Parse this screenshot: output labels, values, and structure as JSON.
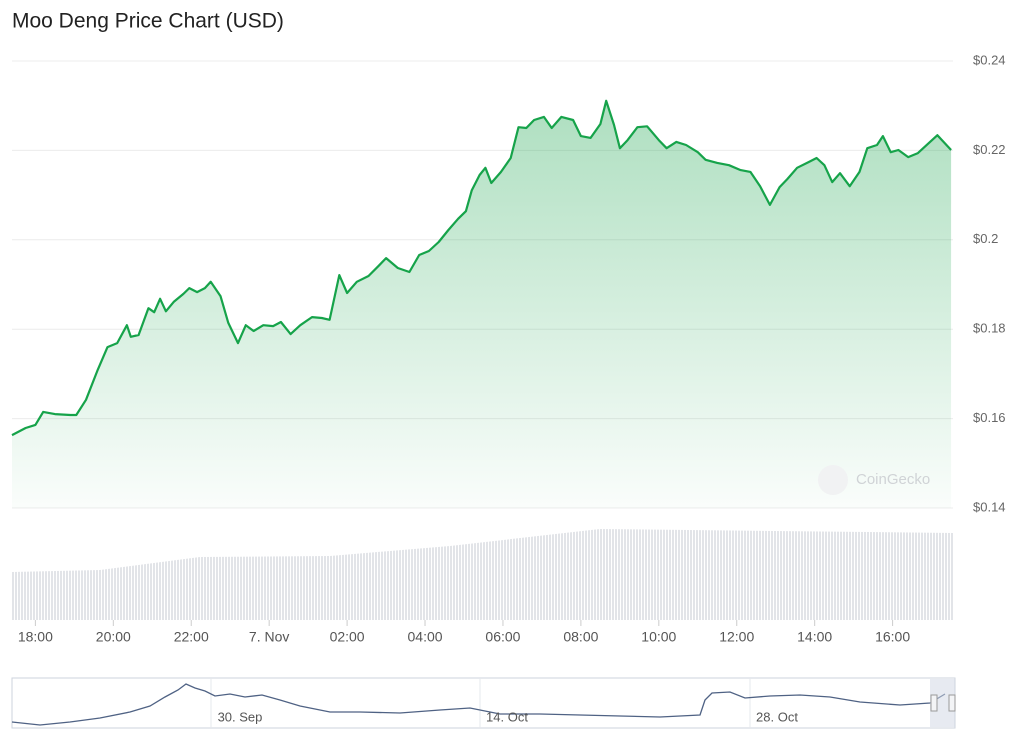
{
  "chart_data": {
    "type": "area",
    "title": "Moo Deng Price Chart (USD)",
    "watermark": "CoinGecko",
    "color": "#16a34a",
    "x": [
      17.4,
      17.75,
      18.0,
      18.2,
      18.5,
      18.9,
      19.05,
      19.3,
      19.6,
      19.85,
      20.1,
      20.35,
      20.45,
      20.65,
      20.9,
      21.05,
      21.2,
      21.35,
      21.55,
      21.8,
      21.95,
      22.15,
      22.35,
      22.5,
      22.75,
      22.95,
      23.2,
      23.4,
      23.6,
      23.85,
      24.1,
      24.3,
      24.55,
      24.8,
      25.1,
      25.35,
      25.55,
      25.8,
      26.0,
      26.25,
      26.55,
      26.8,
      27.0,
      27.3,
      27.6,
      27.85,
      28.1,
      28.35,
      28.6,
      28.85,
      29.05,
      29.2,
      29.4,
      29.55,
      29.7,
      29.95,
      30.2,
      30.4,
      30.6,
      30.8,
      31.05,
      31.25,
      31.5,
      31.8,
      32.0,
      32.25,
      32.5,
      32.65,
      32.85,
      33.0,
      33.2,
      33.45,
      33.7,
      34.0,
      34.2,
      34.45,
      34.7,
      35.0,
      35.2,
      35.5,
      35.8,
      36.1,
      36.35,
      36.6,
      36.85,
      37.1,
      37.3,
      37.55,
      37.85,
      38.05,
      38.25,
      38.45,
      38.65,
      38.9,
      39.15,
      39.35,
      39.6,
      39.75,
      39.95,
      40.15,
      40.4,
      40.65,
      40.9,
      41.15,
      41.5
    ],
    "values": [
      0.1563,
      0.1579,
      0.1586,
      0.1615,
      0.161,
      0.1608,
      0.1608,
      0.1642,
      0.1709,
      0.176,
      0.1769,
      0.1809,
      0.1783,
      0.1787,
      0.1847,
      0.1838,
      0.1868,
      0.184,
      0.1861,
      0.1879,
      0.1892,
      0.1883,
      0.1892,
      0.1906,
      0.1874,
      0.1814,
      0.1769,
      0.1809,
      0.1796,
      0.1809,
      0.1807,
      0.1816,
      0.1789,
      0.1809,
      0.1827,
      0.1825,
      0.1821,
      0.1921,
      0.1881,
      0.1906,
      0.1919,
      0.1941,
      0.1959,
      0.1937,
      0.1928,
      0.1966,
      0.1975,
      0.1995,
      0.2022,
      0.2047,
      0.2064,
      0.2111,
      0.2145,
      0.2161,
      0.2127,
      0.2152,
      0.2183,
      0.2252,
      0.225,
      0.2268,
      0.2275,
      0.225,
      0.2275,
      0.2268,
      0.2232,
      0.2228,
      0.2259,
      0.2311,
      0.2257,
      0.2205,
      0.2223,
      0.2252,
      0.2254,
      0.2223,
      0.2205,
      0.2219,
      0.2212,
      0.2196,
      0.2179,
      0.2172,
      0.2167,
      0.2156,
      0.2152,
      0.212,
      0.2078,
      0.2118,
      0.2136,
      0.2161,
      0.2174,
      0.2183,
      0.2167,
      0.2129,
      0.2149,
      0.212,
      0.2152,
      0.2205,
      0.2212,
      0.2232,
      0.2196,
      0.2201,
      0.2185,
      0.2194,
      0.2214,
      0.2234,
      0.2201
    ],
    "xlim": [
      17.4,
      41.55
    ],
    "xticks": [
      {
        "value": 18,
        "label": "18:00"
      },
      {
        "value": 20,
        "label": "20:00"
      },
      {
        "value": 22,
        "label": "22:00"
      },
      {
        "value": 24,
        "label": "7. Nov"
      },
      {
        "value": 26,
        "label": "02:00"
      },
      {
        "value": 28,
        "label": "04:00"
      },
      {
        "value": 30,
        "label": "06:00"
      },
      {
        "value": 32,
        "label": "08:00"
      },
      {
        "value": 34,
        "label": "10:00"
      },
      {
        "value": 36,
        "label": "12:00"
      },
      {
        "value": 38,
        "label": "14:00"
      },
      {
        "value": 40,
        "label": "16:00"
      }
    ],
    "ylim": [
      0.14,
      0.24
    ],
    "yticks": [
      {
        "value": 0.14,
        "label": "$0.14"
      },
      {
        "value": 0.16,
        "label": "$0.16"
      },
      {
        "value": 0.18,
        "label": "$0.18"
      },
      {
        "value": 0.2,
        "label": "$0.2"
      },
      {
        "value": 0.22,
        "label": "$0.22"
      },
      {
        "value": 0.24,
        "label": "$0.24"
      }
    ],
    "grid": true
  },
  "navigator": {
    "labels": [
      "30. Sep",
      "14. Oct",
      "28. Oct"
    ]
  }
}
